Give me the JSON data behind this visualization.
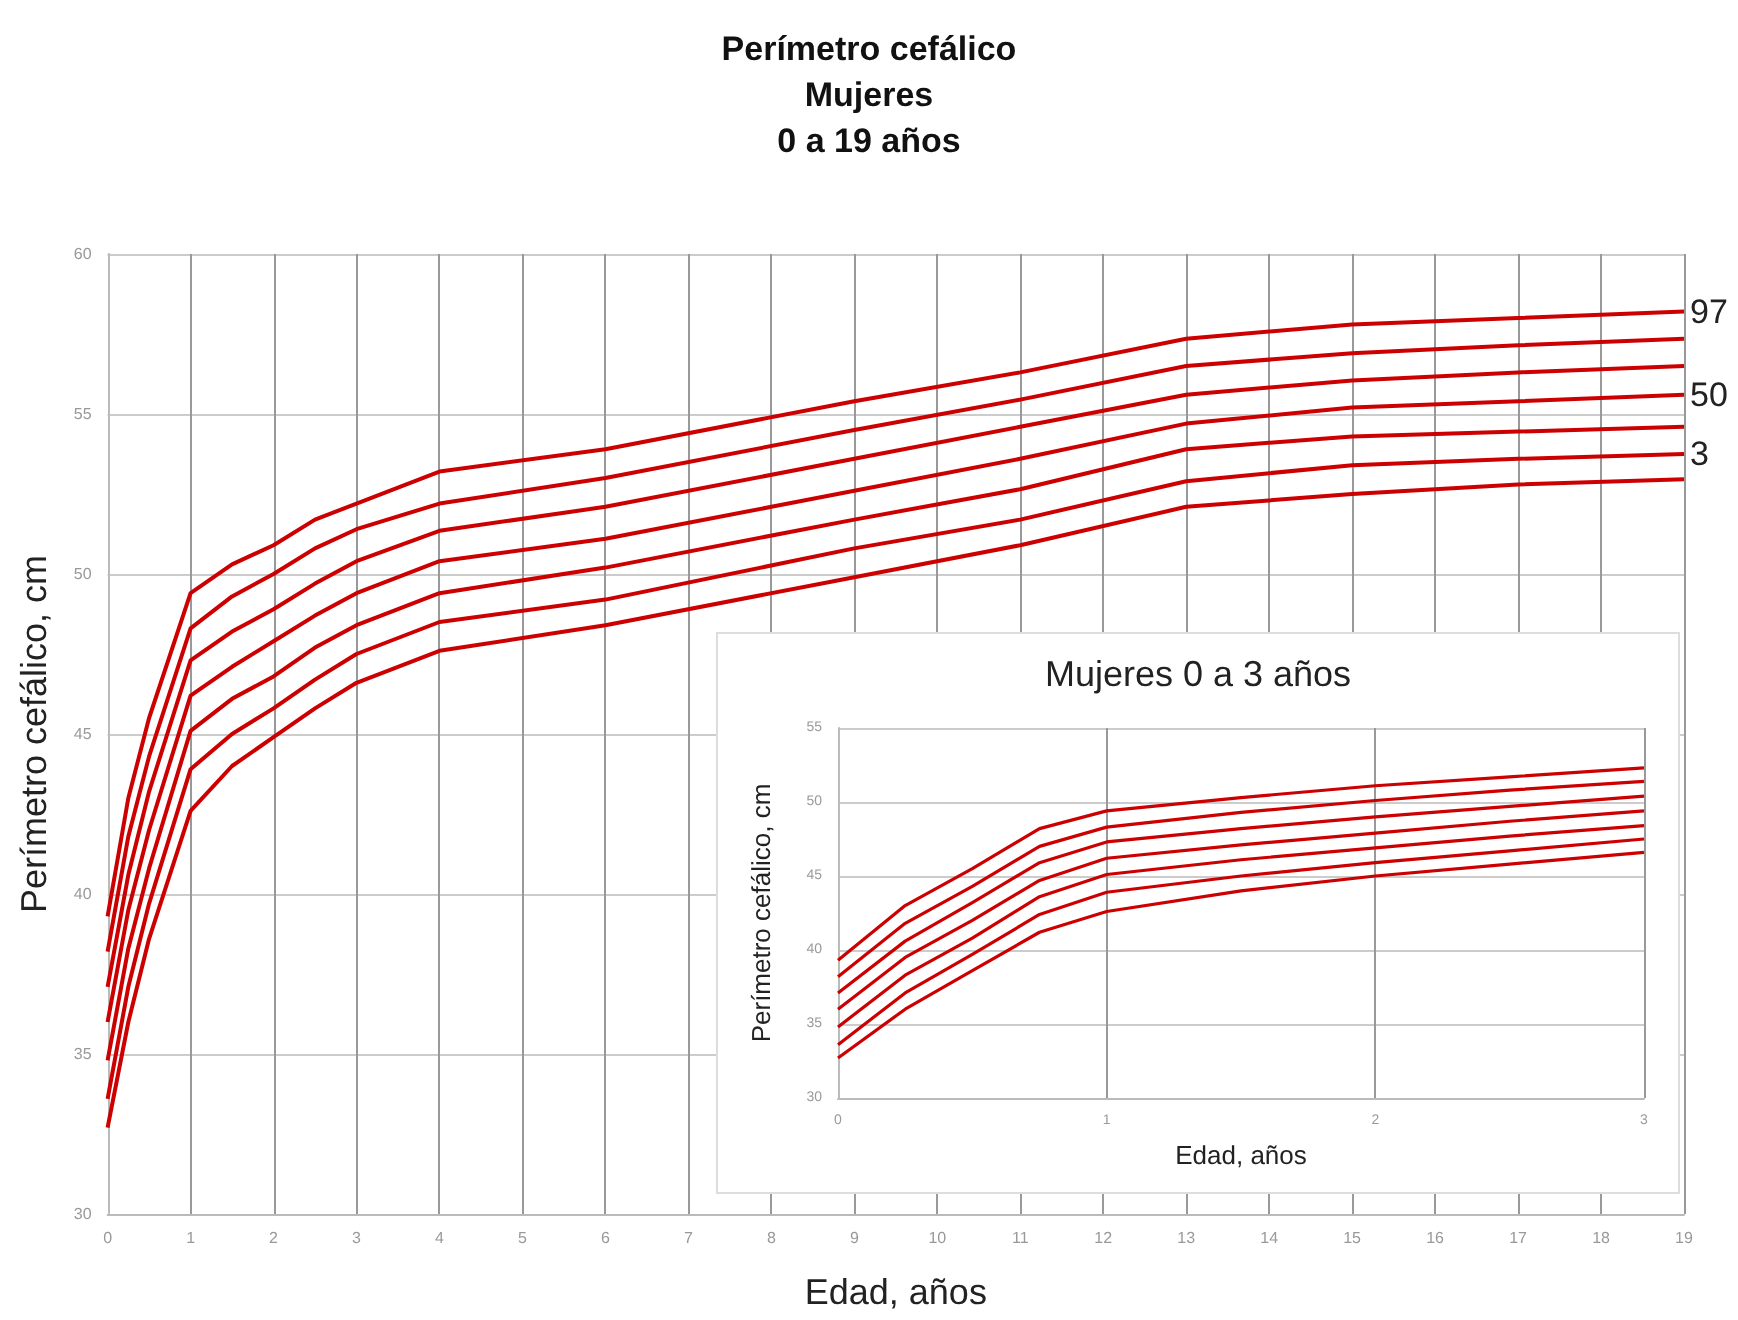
{
  "chart_data": [
    {
      "type": "line",
      "title": "Perímetro cefálico\nMujeres\n0 a 19 años",
      "xlabel": "Edad, años",
      "ylabel": "Perímetro cefálico, cm",
      "x": [
        0,
        0.25,
        0.5,
        1,
        1.5,
        2,
        2.5,
        3,
        4,
        6,
        9,
        11,
        13,
        15,
        17,
        19
      ],
      "xlim": [
        0,
        19
      ],
      "xticks": [
        0,
        1,
        2,
        3,
        4,
        5,
        6,
        7,
        8,
        9,
        10,
        11,
        12,
        13,
        14,
        15,
        16,
        17,
        18,
        19
      ],
      "ylim": [
        30,
        60
      ],
      "yticks": [
        30,
        35,
        40,
        45,
        50,
        55,
        60
      ],
      "grid": true,
      "marker": "none",
      "series": [
        {
          "name": "97",
          "color": "#cc0000",
          "values": [
            39.3,
            43.0,
            45.5,
            49.4,
            50.3,
            50.9,
            51.7,
            52.2,
            53.2,
            53.9,
            55.4,
            56.3,
            57.35,
            57.8,
            58.0,
            58.2
          ]
        },
        {
          "color": "#cc0000",
          "values": [
            38.2,
            41.8,
            44.3,
            48.3,
            49.3,
            50.0,
            50.8,
            51.4,
            52.2,
            53.0,
            54.5,
            55.45,
            56.5,
            56.9,
            57.15,
            57.35
          ]
        },
        {
          "color": "#cc0000",
          "values": [
            37.1,
            40.6,
            43.2,
            47.3,
            48.2,
            48.9,
            49.7,
            50.4,
            51.35,
            52.1,
            53.6,
            54.6,
            55.6,
            56.05,
            56.3,
            56.5
          ]
        },
        {
          "name": "50",
          "color": "#cc0000",
          "values": [
            36.0,
            39.5,
            42.0,
            46.2,
            47.1,
            47.9,
            48.7,
            49.4,
            50.4,
            51.1,
            52.6,
            53.6,
            54.7,
            55.2,
            55.4,
            55.6
          ]
        },
        {
          "color": "#cc0000",
          "values": [
            34.8,
            38.3,
            40.8,
            45.1,
            46.1,
            46.8,
            47.7,
            48.4,
            49.4,
            50.2,
            51.7,
            52.65,
            53.9,
            54.3,
            54.45,
            54.6
          ]
        },
        {
          "name": "3",
          "color": "#cc0000",
          "values": [
            33.6,
            37.1,
            39.7,
            43.9,
            45.0,
            45.8,
            46.7,
            47.5,
            48.5,
            49.2,
            50.8,
            51.7,
            52.9,
            53.4,
            53.6,
            53.75
          ]
        },
        {
          "color": "#cc0000",
          "values": [
            32.7,
            36.0,
            38.6,
            42.6,
            44.0,
            44.9,
            45.8,
            46.6,
            47.6,
            48.4,
            49.9,
            50.9,
            52.1,
            52.5,
            52.8,
            52.96
          ]
        }
      ]
    },
    {
      "type": "line",
      "title": "Mujeres 0 a 3 años",
      "xlabel": "Edad, años",
      "ylabel": "Perímetro cefálico, cm",
      "x": [
        0,
        0.25,
        0.5,
        0.75,
        1,
        1.5,
        2,
        2.5,
        3
      ],
      "xlim": [
        0,
        3
      ],
      "xticks": [
        0,
        1,
        2,
        3
      ],
      "ylim": [
        30,
        55
      ],
      "yticks": [
        30,
        35,
        40,
        45,
        50,
        55
      ],
      "grid": true,
      "marker": "none",
      "series": [
        {
          "color": "#cc0000",
          "values": [
            39.3,
            43.0,
            45.5,
            48.2,
            49.4,
            50.3,
            51.1,
            51.7,
            52.3
          ]
        },
        {
          "color": "#cc0000",
          "values": [
            38.2,
            41.8,
            44.3,
            47.0,
            48.3,
            49.3,
            50.1,
            50.8,
            51.4
          ]
        },
        {
          "color": "#cc0000",
          "values": [
            37.1,
            40.6,
            43.2,
            45.9,
            47.3,
            48.2,
            49.0,
            49.7,
            50.4
          ]
        },
        {
          "color": "#cc0000",
          "values": [
            36.0,
            39.5,
            42.0,
            44.7,
            46.2,
            47.1,
            47.9,
            48.7,
            49.4
          ]
        },
        {
          "color": "#cc0000",
          "values": [
            34.8,
            38.3,
            40.8,
            43.6,
            45.1,
            46.1,
            46.9,
            47.7,
            48.4
          ]
        },
        {
          "color": "#cc0000",
          "values": [
            33.6,
            37.1,
            39.7,
            42.4,
            43.9,
            45.0,
            45.9,
            46.7,
            47.5
          ]
        },
        {
          "color": "#cc0000",
          "values": [
            32.7,
            36.0,
            38.6,
            41.2,
            42.6,
            44.0,
            45.0,
            45.8,
            46.6
          ]
        }
      ]
    }
  ]
}
